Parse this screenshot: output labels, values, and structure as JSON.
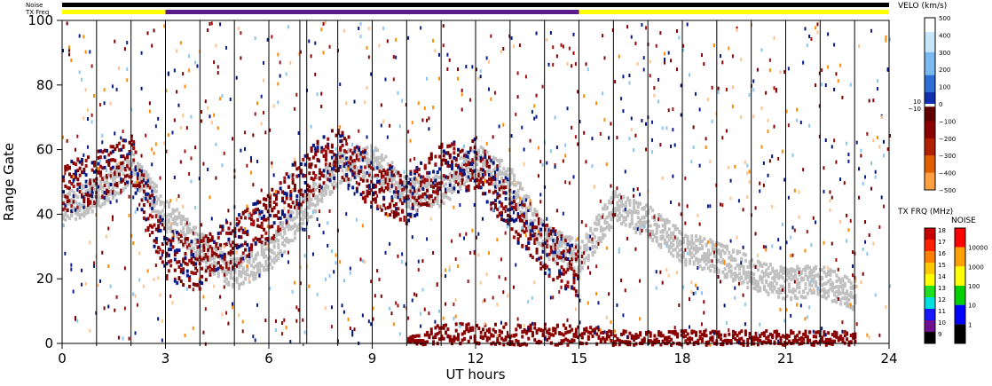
{
  "chart_data": {
    "type": "heatmap",
    "xlabel": "UT hours",
    "ylabel": "Range Gate",
    "xlim": [
      0,
      24
    ],
    "ylim": [
      0,
      100
    ],
    "x_ticks": [
      0,
      3,
      6,
      9,
      12,
      15,
      18,
      21,
      24
    ],
    "y_ticks": [
      0,
      20,
      40,
      60,
      80,
      100
    ],
    "scan_boundaries_hours": [
      1,
      2,
      3,
      4,
      5,
      6,
      6.9,
      7.1,
      8,
      9,
      10,
      11,
      12,
      13,
      14,
      15,
      16,
      17,
      18,
      19,
      20,
      21,
      22,
      23
    ],
    "noise_label": "Noise",
    "txfreq_label": "TX Freq",
    "noise_bar": [
      {
        "start": 0,
        "end": 24,
        "color": "#000000"
      }
    ],
    "txfreq_bar": [
      {
        "start": 0,
        "end": 3,
        "color": "#ffff00"
      },
      {
        "start": 3,
        "end": 15,
        "color": "#5a1a8c"
      },
      {
        "start": 15,
        "end": 24,
        "color": "#ffff00"
      }
    ],
    "ground_scatter_color": "#c0c0c0",
    "velocity_colorbar": {
      "title": "VELO (km/s)",
      "range": [
        -500,
        500
      ],
      "labels": [
        "500",
        "400",
        "300",
        "200",
        "100",
        "0",
        "−100",
        "−200",
        "−300",
        "−400",
        "−500"
      ],
      "side_labels": [
        "10",
        "−10"
      ]
    },
    "txfreq_colorbar": {
      "title": "TX FRQ (MHz)",
      "labels": [
        "18",
        "17",
        "16",
        "15",
        "14",
        "13",
        "12",
        "11",
        "10",
        "9"
      ],
      "colors": [
        "#c80000",
        "#ff2000",
        "#ff8000",
        "#ffc800",
        "#ffff00",
        "#20e020",
        "#00e0e0",
        "#1818ff",
        "#701090",
        "#000000"
      ]
    },
    "noise_colorbar": {
      "title": "NOISE",
      "labels": [
        "10000",
        "1000",
        "100",
        "10",
        "1"
      ],
      "colors": [
        "#ff0000",
        "#ffa000",
        "#ffff00",
        "#00d000",
        "#0000ff",
        "#000000"
      ]
    },
    "features": [
      {
        "name": "ground scatter band",
        "points": [
          [
            0,
            42
          ],
          [
            1,
            47
          ],
          [
            2,
            55
          ],
          [
            3,
            40
          ],
          [
            4,
            30
          ],
          [
            5,
            22
          ],
          [
            6,
            28
          ],
          [
            7,
            42
          ],
          [
            8,
            55
          ],
          [
            9,
            57
          ],
          [
            10,
            47
          ],
          [
            11,
            48
          ],
          [
            12,
            58
          ],
          [
            13,
            50
          ],
          [
            14,
            32
          ],
          [
            15,
            27
          ],
          [
            16,
            43
          ],
          [
            17,
            38
          ],
          [
            18,
            30
          ],
          [
            19,
            27
          ],
          [
            20,
            22
          ],
          [
            21,
            19
          ],
          [
            22,
            20
          ],
          [
            23,
            15
          ]
        ]
      },
      {
        "name": "ionospheric scatter (receding)",
        "points": [
          [
            0,
            48
          ],
          [
            1,
            52
          ],
          [
            2,
            57
          ],
          [
            3,
            28
          ],
          [
            4,
            25
          ],
          [
            5,
            32
          ],
          [
            6,
            40
          ],
          [
            7,
            52
          ],
          [
            8,
            60
          ],
          [
            9,
            50
          ],
          [
            10,
            45
          ],
          [
            11,
            55
          ],
          [
            12,
            56
          ],
          [
            13,
            42
          ],
          [
            14,
            30
          ],
          [
            15,
            22
          ]
        ]
      },
      {
        "name": "near-range scatter",
        "points": [
          [
            10,
            1
          ],
          [
            11,
            3
          ],
          [
            12,
            3
          ],
          [
            13,
            3
          ],
          [
            14,
            3
          ],
          [
            15,
            3
          ],
          [
            16,
            2
          ],
          [
            17,
            2
          ],
          [
            18,
            2
          ],
          [
            19,
            2
          ],
          [
            20,
            2
          ],
          [
            21,
            2
          ],
          [
            22,
            2
          ],
          [
            23,
            2
          ]
        ]
      }
    ]
  }
}
